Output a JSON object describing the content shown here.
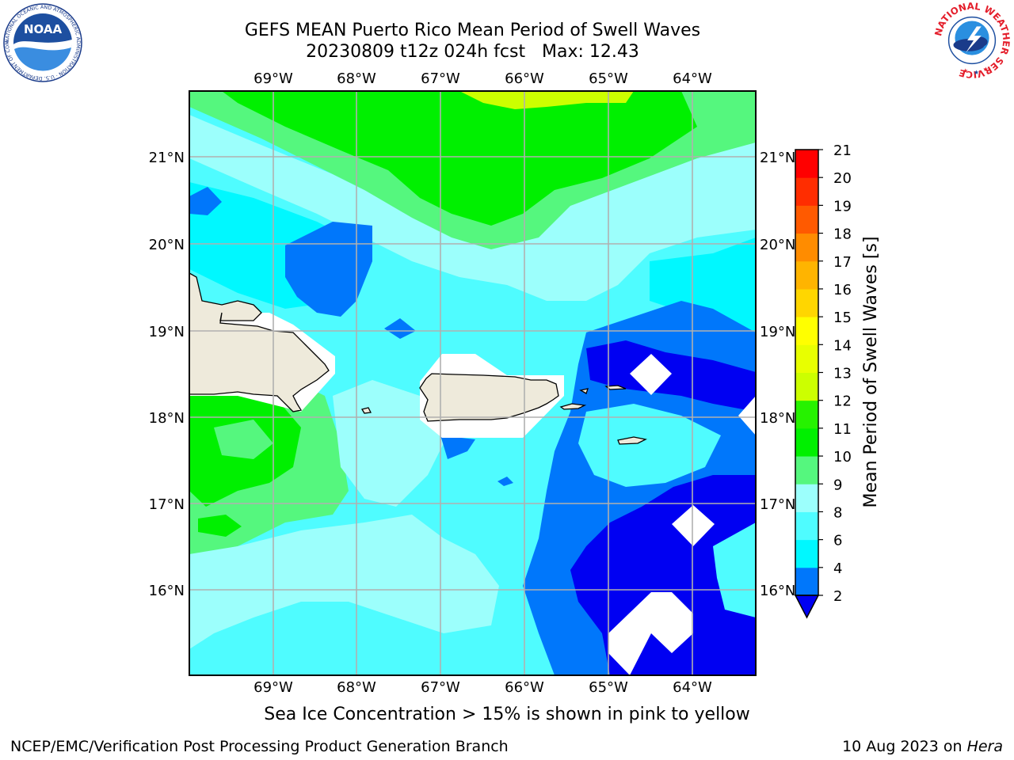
{
  "header": {
    "title_line1": "GEFS MEAN Puerto Rico Mean Period of Swell Waves",
    "title_line2": "20230809 t12z 024h fcst   Max: 12.43",
    "noaa_logo_text": "NOAA",
    "noaa_ring_text": "NATIONAL OCEANIC AND ATMOSPHERIC ADMINISTRATION · U.S. DEPARTMENT OF COMMERCE",
    "nws_ring_text": "NATIONAL WEATHER SERVICE"
  },
  "map": {
    "lon_labels": [
      "69°W",
      "68°W",
      "67°W",
      "66°W",
      "65°W",
      "64°W"
    ],
    "lat_labels": [
      "21°N",
      "20°N",
      "19°N",
      "18°N",
      "17°N",
      "16°N"
    ],
    "land_color": "#eeeadb",
    "fill_colors": {
      "light_green": "#55f77e",
      "green": "#00f000",
      "yellow_green": "#ccff00",
      "aqua_light": "#9cfffc",
      "aqua": "#00f8ff",
      "cyan": "#4ffcff",
      "blue": "#0077fb",
      "dark_blue": "#0000f2"
    }
  },
  "colorbar": {
    "label": "Mean Period of Swell Waves [s]",
    "ticks": [
      "2",
      "4",
      "6",
      "8",
      "9",
      "10",
      "11",
      "12",
      "13",
      "14",
      "15",
      "16",
      "17",
      "18",
      "19",
      "20",
      "21"
    ],
    "colors": [
      "#0000f2",
      "#0077fb",
      "#00f8ff",
      "#4ffcff",
      "#9cfffc",
      "#55f77e",
      "#00f000",
      "#26f200",
      "#ccff00",
      "#e8ff00",
      "#ffff00",
      "#ffd600",
      "#ffb400",
      "#ff8c00",
      "#ff5a00",
      "#ff2d00",
      "#ff0000"
    ],
    "extend_color": "#0000f2"
  },
  "footer": {
    "subtitle": "Sea Ice Concentration > 15% is shown in pink to yellow",
    "credit_left": "NCEP/EMC/Verification Post Processing Product Generation Branch",
    "credit_date": "10 Aug 2023 on ",
    "credit_machine": "Hera"
  }
}
